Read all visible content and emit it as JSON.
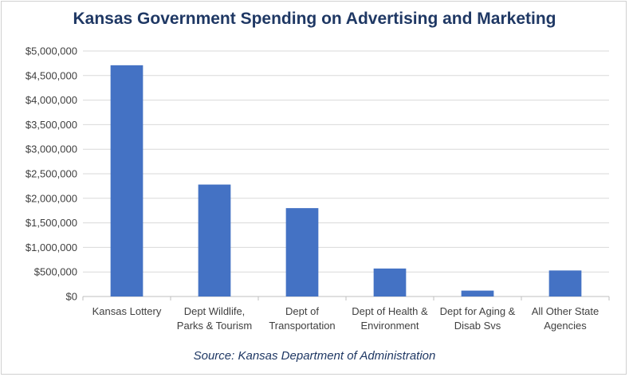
{
  "chart_data": {
    "type": "bar",
    "title": "Kansas Government Spending on Advertising and Marketing",
    "note": "Source: Kansas Department of Administration",
    "categories": [
      [
        "Kansas Lottery"
      ],
      [
        "Dept Wildlife,",
        "Parks & Tourism"
      ],
      [
        "Dept of",
        "Transportation"
      ],
      [
        "Dept of Health &",
        "Environment"
      ],
      [
        "Dept for Aging &",
        "Disab Svs"
      ],
      [
        "All Other State",
        "Agencies"
      ]
    ],
    "values": [
      4710000,
      2280000,
      1800000,
      570000,
      120000,
      530000
    ],
    "ylim": [
      0,
      5000000
    ],
    "yticks": [
      0,
      500000,
      1000000,
      1500000,
      2000000,
      2500000,
      3000000,
      3500000,
      4000000,
      4500000,
      5000000
    ],
    "ytick_labels": [
      "$0",
      "$500,000",
      "$1,000,000",
      "$1,500,000",
      "$2,000,000",
      "$2,500,000",
      "$3,000,000",
      "$3,500,000",
      "$4,000,000",
      "$4,500,000",
      "$5,000,000"
    ],
    "grid": true,
    "legend": "none",
    "colors": {
      "bar": "#4472c4",
      "grid": "#d9d9d9",
      "title": "#1f3864"
    }
  }
}
